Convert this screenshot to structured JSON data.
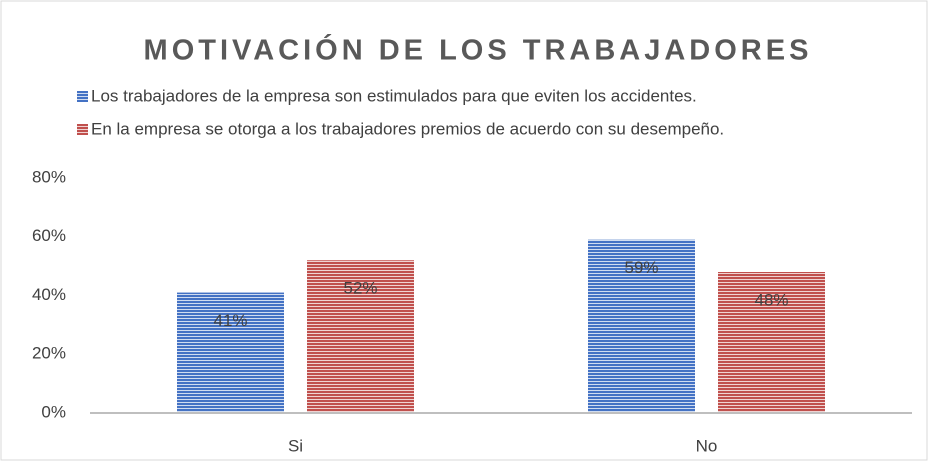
{
  "chart_data": {
    "type": "bar",
    "title": "MOTIVACIÓN DE LOS TRABAJADORES",
    "categories": [
      "Si",
      "No"
    ],
    "series": [
      {
        "name": "Los trabajadores de la empresa son estimulados para que eviten los accidentes.",
        "color": "#4472c4",
        "values": [
          41,
          59
        ],
        "value_labels": [
          "41%",
          "59%"
        ]
      },
      {
        "name": "En la empresa se otorga a los trabajadores premios de acuerdo con su desempeño.",
        "color": "#c0504d",
        "values": [
          52,
          48
        ],
        "value_labels": [
          "52%",
          "48%"
        ]
      }
    ],
    "ylim": [
      0,
      80
    ],
    "yticks": [
      {
        "value": 0,
        "label": "0%"
      },
      {
        "value": 20,
        "label": "20%"
      },
      {
        "value": 40,
        "label": "40%"
      },
      {
        "value": 60,
        "label": "60%"
      },
      {
        "value": 80,
        "label": "80%"
      }
    ],
    "grid": false,
    "legend": "top"
  }
}
